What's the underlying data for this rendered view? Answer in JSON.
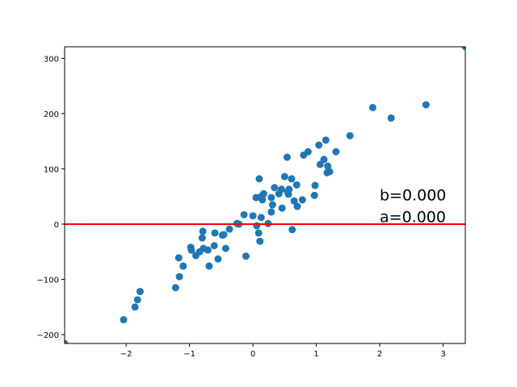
{
  "chart_data": {
    "type": "scatter",
    "x": [
      -2.97,
      3.35,
      -2.04,
      -1.86,
      -1.82,
      -1.78,
      -1.22,
      -1.16,
      -1.17,
      -1.1,
      -0.98,
      -0.97,
      -0.9,
      -0.84,
      -0.8,
      -0.79,
      -0.78,
      -0.71,
      -0.69,
      -0.61,
      -0.6,
      -0.55,
      -0.48,
      -0.46,
      -0.43,
      -0.37,
      -0.25,
      -0.22,
      -0.14,
      -0.11,
      0.0,
      0.05,
      0.06,
      0.09,
      0.1,
      0.11,
      0.13,
      0.15,
      0.17,
      0.13,
      0.24,
      0.29,
      0.31,
      0.29,
      0.34,
      0.41,
      0.45,
      0.46,
      0.5,
      0.54,
      0.55,
      0.56,
      0.57,
      0.61,
      0.62,
      0.65,
      0.7,
      0.69,
      0.78,
      0.8,
      0.87,
      0.97,
      0.98,
      1.04,
      1.06,
      1.12,
      1.15,
      1.17,
      1.18,
      1.21,
      1.31,
      1.53,
      1.89,
      2.18,
      2.73
    ],
    "values": [
      -216,
      321,
      -173,
      -150,
      -137,
      -122,
      -115,
      -95,
      -61,
      -76,
      -42,
      -47,
      -57,
      -50,
      -25,
      -13,
      -44,
      -47,
      -76,
      -39,
      -16,
      -63,
      -20,
      -19,
      -44,
      -9,
      1,
      0,
      17,
      -58,
      15,
      48,
      -3,
      -16,
      82,
      -31,
      12,
      44,
      55,
      50,
      1,
      22,
      35,
      48,
      66,
      55,
      63,
      29,
      86,
      121,
      58,
      54,
      63,
      82,
      -10,
      42,
      32,
      71,
      44,
      125,
      131,
      52,
      70,
      143,
      108,
      117,
      152,
      93,
      105,
      95,
      131,
      160,
      211,
      192,
      216
    ],
    "color": "#1f77b4",
    "fit": {
      "x": [
        -2.97,
        3.35
      ],
      "values": [
        0,
        0
      ],
      "color": "#ff0000"
    },
    "annotations": [
      "b=0.000",
      "a=0.000"
    ],
    "xlim": [
      -2.97,
      3.35
    ],
    "ylim": [
      -216,
      321
    ],
    "xticks": [
      {
        "value": -2,
        "label": "−2"
      },
      {
        "value": -1,
        "label": "−1"
      },
      0,
      1,
      2,
      3
    ],
    "yticks": [
      {
        "value": -200,
        "label": "−200"
      },
      {
        "value": -100,
        "label": "−100"
      },
      0,
      100,
      200,
      300
    ]
  }
}
